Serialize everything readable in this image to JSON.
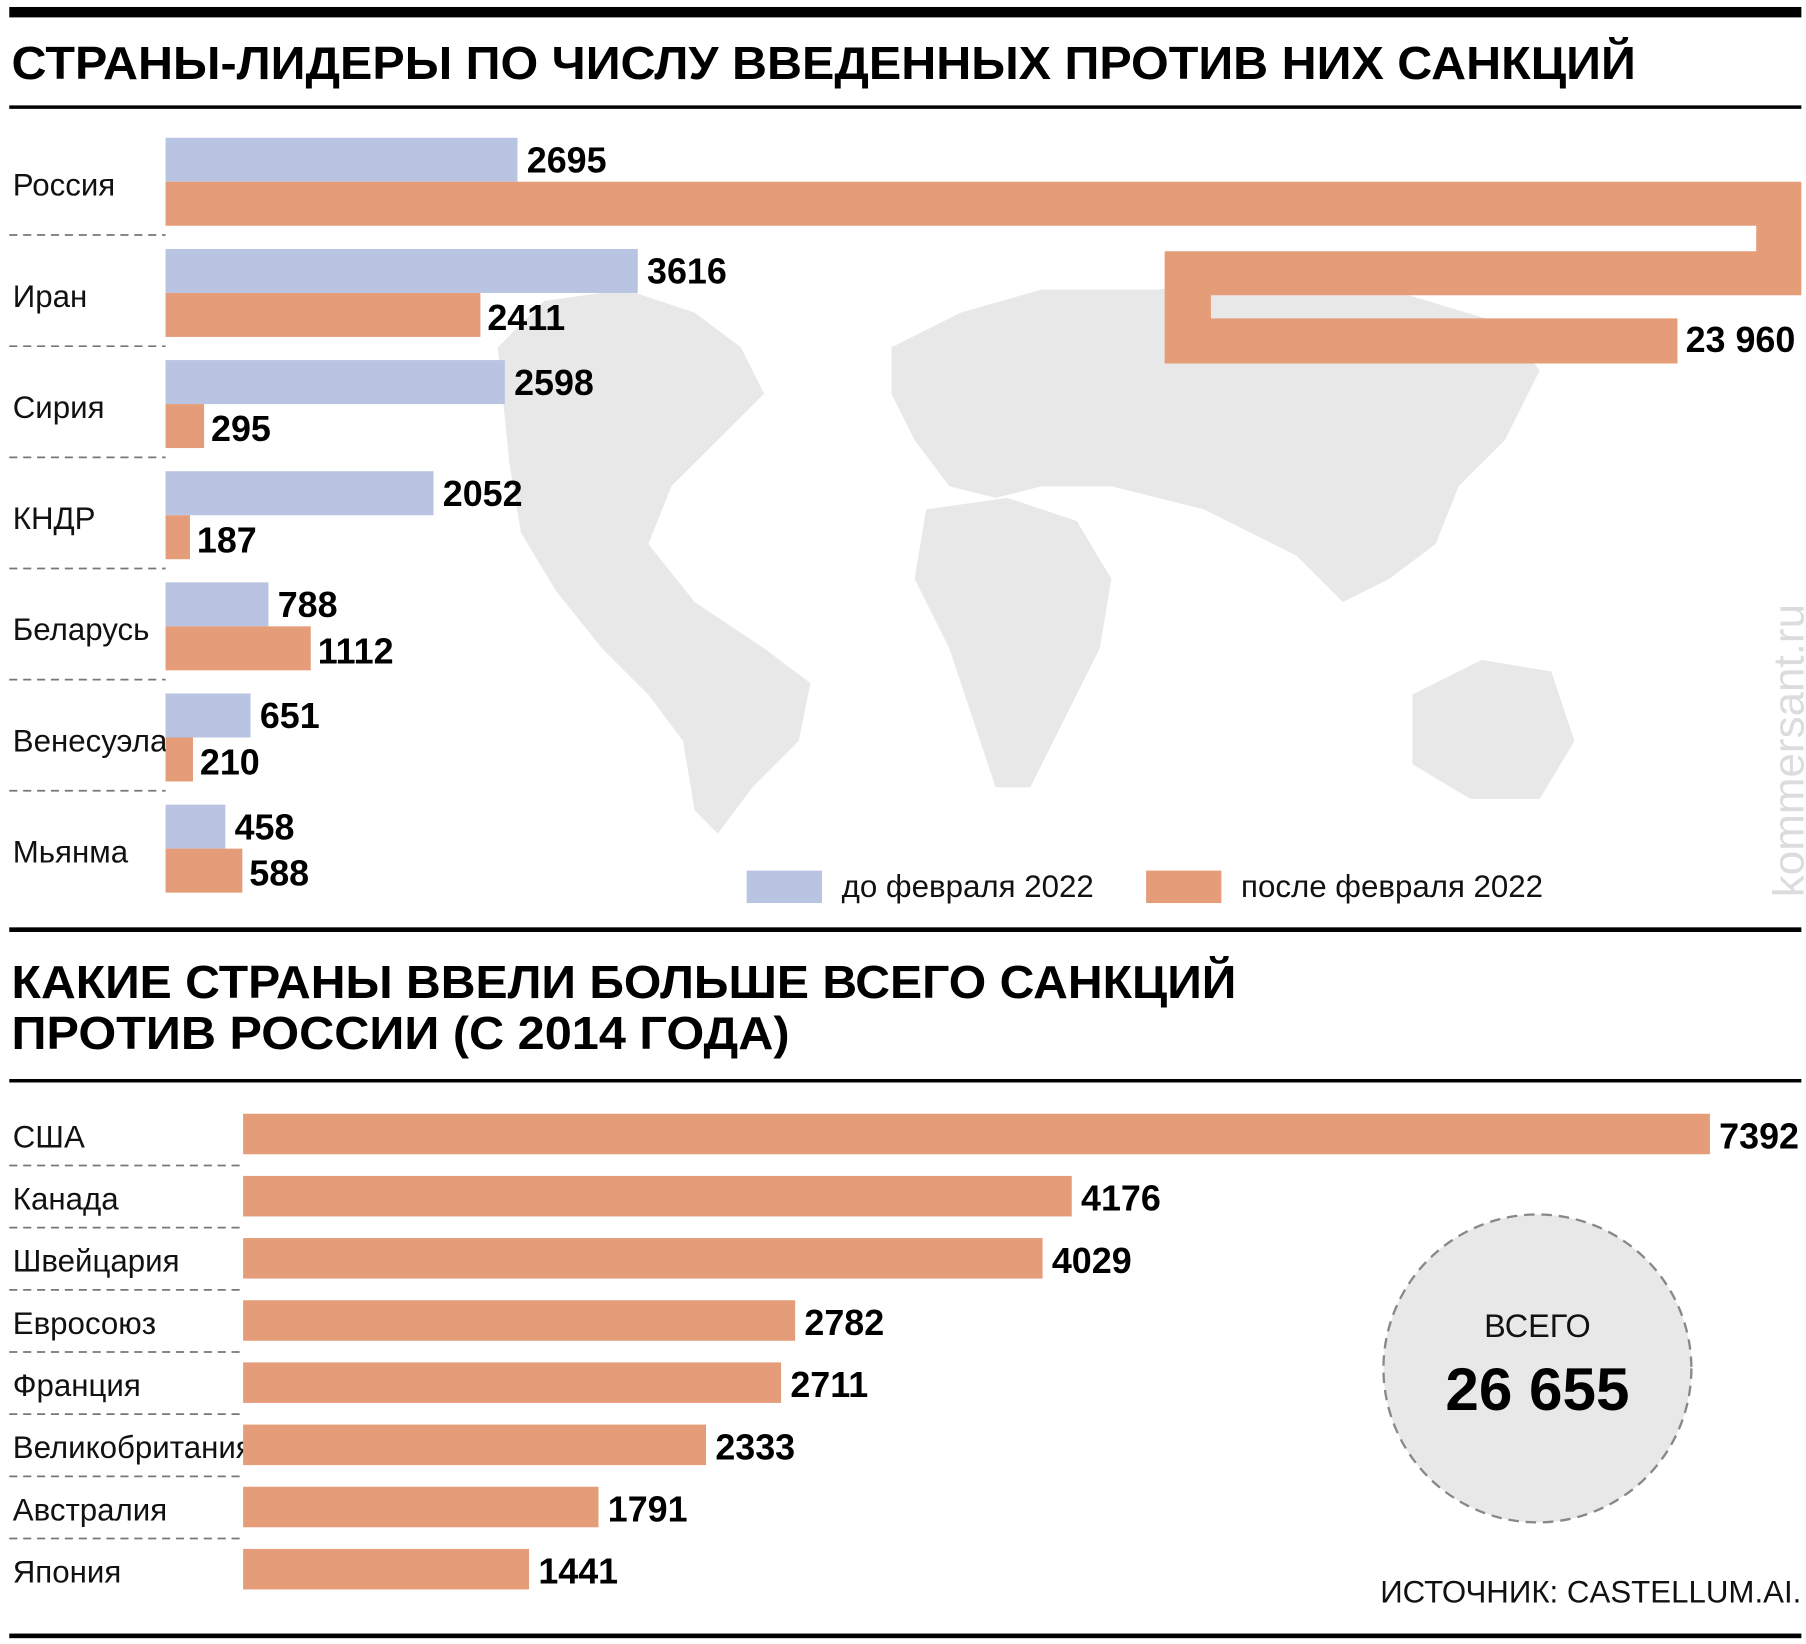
{
  "colors": {
    "before": "#b9c3e2",
    "after": "#e59c79",
    "map": "#e8e8e8",
    "circle": "#e8e8e8"
  },
  "watermark": "kommersant.ru",
  "chart_data": [
    {
      "type": "bar",
      "orientation": "horizontal",
      "title": "СТРАНЫ-ЛИДЕРЫ ПО ЧИСЛУ ВВЕДЕННЫХ ПРОТИВ НИХ САНКЦИЙ",
      "categories": [
        "Россия",
        "Иран",
        "Сирия",
        "КНДР",
        "Беларусь",
        "Венесуэла",
        "Мьянма"
      ],
      "series": [
        {
          "name": "до февраля 2022",
          "values": [
            2695,
            3616,
            2598,
            2052,
            788,
            651,
            458
          ],
          "labels": [
            "2695",
            "3616",
            "2598",
            "2052",
            "788",
            "651",
            "458"
          ]
        },
        {
          "name": "после февраля 2022",
          "values": [
            23960,
            2411,
            295,
            187,
            1112,
            210,
            588
          ],
          "labels": [
            "23 960",
            "2411",
            "295",
            "187",
            "1112",
            "210",
            "588"
          ]
        }
      ],
      "legend": "bottom-right",
      "background": "world map"
    },
    {
      "type": "bar",
      "orientation": "horizontal",
      "title_lines": [
        "КАКИЕ СТРАНЫ ВВЕЛИ БОЛЬШЕ ВСЕГО САНКЦИЙ",
        "ПРОТИВ РОССИИ (С 2014 ГОДА)"
      ],
      "categories": [
        "США",
        "Канада",
        "Швейцария",
        "Евросоюз",
        "Франция",
        "Великобритания",
        "Австралия",
        "Япония"
      ],
      "values": [
        7392,
        4176,
        4029,
        2782,
        2711,
        2333,
        1791,
        1441
      ],
      "total": {
        "label": "ВСЕГО",
        "value": "26 655"
      },
      "source": "ИСТОЧНИК: CASTELLUM.AI."
    }
  ]
}
